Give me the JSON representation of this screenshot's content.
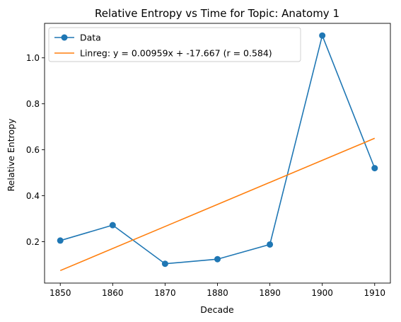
{
  "chart_data": {
    "type": "line",
    "title": "Relative Entropy vs Time for Topic: Anatomy 1",
    "xlabel": "Decade",
    "ylabel": "Relative Entropy",
    "xlim": [
      1847,
      1913
    ],
    "ylim": [
      0.02,
      1.15
    ],
    "xticks": [
      1850,
      1860,
      1870,
      1880,
      1890,
      1900,
      1910
    ],
    "xtick_labels": [
      "1850",
      "1860",
      "1870",
      "1880",
      "1890",
      "1900",
      "1910"
    ],
    "yticks": [
      0.2,
      0.4,
      0.6,
      0.8,
      1.0
    ],
    "ytick_labels": [
      "0.2",
      "0.4",
      "0.6",
      "0.8",
      "1.0"
    ],
    "grid": false,
    "legend_position": "top-left",
    "series": [
      {
        "name": "Data",
        "color": "#1f77b4",
        "marker": "circle",
        "x": [
          1850,
          1860,
          1870,
          1880,
          1890,
          1900,
          1910
        ],
        "y": [
          0.205,
          0.272,
          0.104,
          0.124,
          0.188,
          1.097,
          0.52
        ]
      },
      {
        "name": "Linreg: y = 0.00959x + -17.667 (r = 0.584)",
        "color": "#ff7f0e",
        "marker": "none",
        "x": [
          1850,
          1910
        ],
        "y": [
          0.0745,
          0.6499
        ]
      }
    ]
  }
}
